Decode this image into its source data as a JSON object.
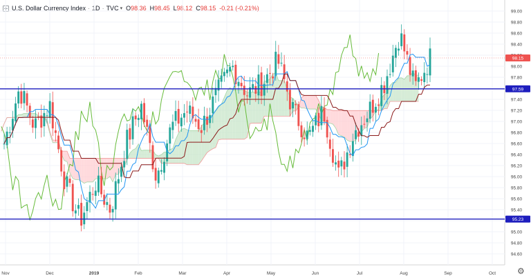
{
  "header": {
    "title": "U.S. Dollar Currency Index",
    "interval": "1D",
    "exchange": "TVC",
    "open_label": "O",
    "open": "98.36",
    "high_label": "H",
    "high": "98.45",
    "low_label": "L",
    "low": "98.12",
    "close_label": "C",
    "close": "98.15",
    "change": "-0.21 (-0.21%)"
  },
  "alert_badge": "!",
  "colors": {
    "up": "#26a69a",
    "down": "#ef5350",
    "conversion": "#2196f3",
    "base": "#8b1a1a",
    "lagging": "#66bb3a",
    "cloud_bull": "#c8e6c9",
    "cloud_bear": "#ffcdd2",
    "level_line": "#1e1ebe",
    "price_label_bg": "#ef5350",
    "level_label_bg": "#1e1ebe"
  },
  "chart_data": {
    "type": "candlestick",
    "ylim": [
      94.4,
      99.2
    ],
    "y_ticks": [
      "99.00",
      "98.80",
      "98.60",
      "98.40",
      "98.20",
      "98.00",
      "97.80",
      "97.60",
      "97.40",
      "97.20",
      "97.00",
      "96.80",
      "96.60",
      "96.40",
      "96.20",
      "96.00",
      "95.80",
      "95.60",
      "95.40",
      "95.20",
      "95.00",
      "94.80",
      "94.60"
    ],
    "x_ticks": [
      "Nov",
      "Dec",
      "2019",
      "Feb",
      "Mar",
      "Apr",
      "May",
      "Jun",
      "Jul",
      "Aug",
      "Sep",
      "Oct"
    ],
    "horizontal_levels": [
      {
        "value": 97.59,
        "label": "97.59"
      },
      {
        "value": 95.23,
        "label": "95.23"
      }
    ],
    "last_price": {
      "value": 98.15,
      "label": "98.15"
    },
    "indicator": "Ichimoku Cloud",
    "anchors": [
      {
        "date": "Nov",
        "close": 96.6
      },
      {
        "date": "Nov",
        "close": 97.6
      },
      {
        "date": "Dec",
        "close": 96.9
      },
      {
        "date": "Dec",
        "close": 97.3
      },
      {
        "date": "2019",
        "close": 95.9
      },
      {
        "date": "2019",
        "close": 95.2
      },
      {
        "date": "2019",
        "close": 95.9
      },
      {
        "date": "Feb",
        "close": 95.4
      },
      {
        "date": "Feb",
        "close": 96.6
      },
      {
        "date": "Mar",
        "close": 97.3
      },
      {
        "date": "Mar",
        "close": 96.0
      },
      {
        "date": "Mar",
        "close": 96.9
      },
      {
        "date": "Apr",
        "close": 97.2
      },
      {
        "date": "Apr",
        "close": 96.9
      },
      {
        "date": "Apr",
        "close": 97.5
      },
      {
        "date": "May",
        "close": 98.0
      },
      {
        "date": "May",
        "close": 97.5
      },
      {
        "date": "May",
        "close": 97.7
      },
      {
        "date": "May",
        "close": 98.1
      },
      {
        "date": "Jun",
        "close": 97.2
      },
      {
        "date": "Jun",
        "close": 96.7
      },
      {
        "date": "Jun",
        "close": 97.2
      },
      {
        "date": "Jul",
        "close": 96.0
      },
      {
        "date": "Jul",
        "close": 96.8
      },
      {
        "date": "Jul",
        "close": 97.2
      },
      {
        "date": "Jul",
        "close": 97.7
      },
      {
        "date": "Aug",
        "close": 98.6
      },
      {
        "date": "Aug",
        "close": 97.6
      },
      {
        "date": "Aug",
        "close": 98.15
      }
    ]
  }
}
